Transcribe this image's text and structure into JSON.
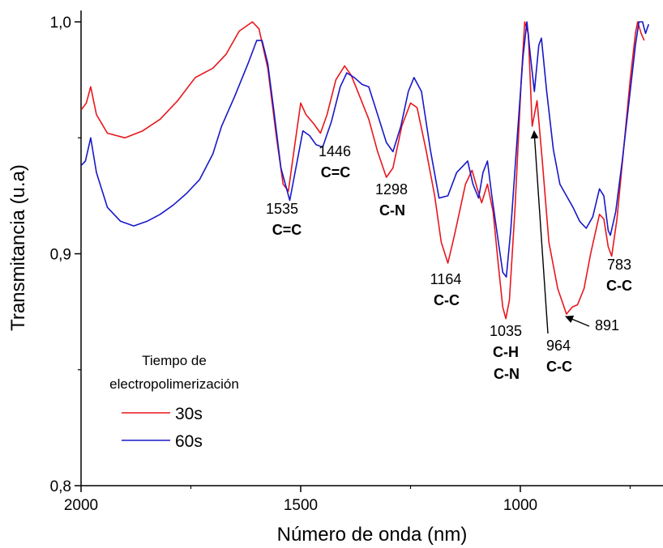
{
  "chart_data": {
    "type": "line",
    "xlabel": "Número de onda (nm)",
    "ylabel": "Transmitancia (u.a)",
    "xlim": [
      2000,
      735
    ],
    "ylim": [
      0.8,
      1.0
    ],
    "x_ticks": [
      2000,
      1500,
      1000
    ],
    "y_ticks": [
      "1,0",
      "0,9",
      "0,8"
    ],
    "y_tick_values": [
      1.0,
      0.9,
      0.8
    ],
    "legend": {
      "title": "Tiempo de electropolimerización",
      "title_lines": [
        "Tiempo de",
        "electropolimerización"
      ],
      "placement": "bottom-left"
    },
    "series": [
      {
        "name": "30s",
        "color": "#e8171c",
        "points": [
          [
            2000,
            0.962
          ],
          [
            1988,
            0.965
          ],
          [
            1978,
            0.972
          ],
          [
            1965,
            0.96
          ],
          [
            1940,
            0.952
          ],
          [
            1900,
            0.95
          ],
          [
            1860,
            0.953
          ],
          [
            1820,
            0.958
          ],
          [
            1780,
            0.966
          ],
          [
            1740,
            0.976
          ],
          [
            1700,
            0.98
          ],
          [
            1670,
            0.986
          ],
          [
            1640,
            0.996
          ],
          [
            1610,
            1.0
          ],
          [
            1595,
            0.997
          ],
          [
            1575,
            0.98
          ],
          [
            1555,
            0.95
          ],
          [
            1540,
            0.93
          ],
          [
            1528,
            0.927
          ],
          [
            1515,
            0.945
          ],
          [
            1500,
            0.965
          ],
          [
            1488,
            0.96
          ],
          [
            1470,
            0.956
          ],
          [
            1455,
            0.952
          ],
          [
            1440,
            0.96
          ],
          [
            1420,
            0.975
          ],
          [
            1400,
            0.981
          ],
          [
            1385,
            0.977
          ],
          [
            1368,
            0.969
          ],
          [
            1345,
            0.958
          ],
          [
            1325,
            0.944
          ],
          [
            1305,
            0.933
          ],
          [
            1290,
            0.937
          ],
          [
            1270,
            0.955
          ],
          [
            1250,
            0.965
          ],
          [
            1235,
            0.963
          ],
          [
            1215,
            0.945
          ],
          [
            1195,
            0.925
          ],
          [
            1180,
            0.905
          ],
          [
            1165,
            0.896
          ],
          [
            1150,
            0.908
          ],
          [
            1125,
            0.93
          ],
          [
            1110,
            0.936
          ],
          [
            1098,
            0.928
          ],
          [
            1088,
            0.922
          ],
          [
            1075,
            0.93
          ],
          [
            1062,
            0.918
          ],
          [
            1050,
            0.895
          ],
          [
            1040,
            0.877
          ],
          [
            1033,
            0.872
          ],
          [
            1025,
            0.88
          ],
          [
            1012,
            0.92
          ],
          [
            998,
            0.975
          ],
          [
            990,
            1.0
          ],
          [
            982,
            0.995
          ],
          [
            973,
            0.955
          ],
          [
            962,
            0.966
          ],
          [
            950,
            0.94
          ],
          [
            935,
            0.905
          ],
          [
            915,
            0.885
          ],
          [
            895,
            0.874
          ],
          [
            882,
            0.877
          ],
          [
            870,
            0.878
          ],
          [
            855,
            0.885
          ],
          [
            840,
            0.9
          ],
          [
            820,
            0.917
          ],
          [
            810,
            0.915
          ],
          [
            800,
            0.903
          ],
          [
            792,
            0.899
          ],
          [
            780,
            0.915
          ],
          [
            765,
            0.945
          ],
          [
            750,
            0.975
          ],
          [
            738,
            0.995
          ],
          [
            733,
            1.0
          ],
          [
            725,
            0.995
          ],
          [
            718,
            0.992
          ]
        ]
      },
      {
        "name": "60s",
        "color": "#1818c8",
        "points": [
          [
            2000,
            0.938
          ],
          [
            1990,
            0.94
          ],
          [
            1978,
            0.95
          ],
          [
            1965,
            0.935
          ],
          [
            1940,
            0.92
          ],
          [
            1910,
            0.914
          ],
          [
            1880,
            0.912
          ],
          [
            1850,
            0.914
          ],
          [
            1820,
            0.917
          ],
          [
            1790,
            0.921
          ],
          [
            1760,
            0.926
          ],
          [
            1730,
            0.932
          ],
          [
            1700,
            0.943
          ],
          [
            1680,
            0.955
          ],
          [
            1650,
            0.968
          ],
          [
            1620,
            0.982
          ],
          [
            1600,
            0.992
          ],
          [
            1588,
            0.992
          ],
          [
            1575,
            0.982
          ],
          [
            1560,
            0.96
          ],
          [
            1545,
            0.937
          ],
          [
            1525,
            0.923
          ],
          [
            1510,
            0.938
          ],
          [
            1495,
            0.953
          ],
          [
            1480,
            0.951
          ],
          [
            1465,
            0.947
          ],
          [
            1450,
            0.946
          ],
          [
            1430,
            0.957
          ],
          [
            1410,
            0.972
          ],
          [
            1395,
            0.978
          ],
          [
            1378,
            0.976
          ],
          [
            1360,
            0.973
          ],
          [
            1345,
            0.972
          ],
          [
            1325,
            0.96
          ],
          [
            1305,
            0.948
          ],
          [
            1290,
            0.944
          ],
          [
            1272,
            0.955
          ],
          [
            1255,
            0.97
          ],
          [
            1242,
            0.976
          ],
          [
            1225,
            0.97
          ],
          [
            1205,
            0.945
          ],
          [
            1185,
            0.924
          ],
          [
            1165,
            0.925
          ],
          [
            1145,
            0.935
          ],
          [
            1120,
            0.94
          ],
          [
            1108,
            0.93
          ],
          [
            1095,
            0.924
          ],
          [
            1085,
            0.935
          ],
          [
            1075,
            0.94
          ],
          [
            1065,
            0.925
          ],
          [
            1050,
            0.905
          ],
          [
            1040,
            0.892
          ],
          [
            1032,
            0.89
          ],
          [
            1022,
            0.91
          ],
          [
            1008,
            0.948
          ],
          [
            994,
            0.985
          ],
          [
            985,
            1.0
          ],
          [
            977,
            0.985
          ],
          [
            968,
            0.97
          ],
          [
            958,
            0.99
          ],
          [
            952,
            0.993
          ],
          [
            940,
            0.97
          ],
          [
            925,
            0.945
          ],
          [
            910,
            0.93
          ],
          [
            895,
            0.925
          ],
          [
            880,
            0.92
          ],
          [
            865,
            0.914
          ],
          [
            850,
            0.911
          ],
          [
            835,
            0.916
          ],
          [
            820,
            0.928
          ],
          [
            810,
            0.925
          ],
          [
            800,
            0.91
          ],
          [
            795,
            0.908
          ],
          [
            783,
            0.918
          ],
          [
            768,
            0.94
          ],
          [
            750,
            0.97
          ],
          [
            738,
            0.99
          ],
          [
            730,
            1.0
          ],
          [
            722,
            1.0
          ],
          [
            715,
            0.995
          ],
          [
            708,
            0.999
          ]
        ]
      }
    ],
    "annotations": [
      {
        "id": "a1535",
        "number": "1535",
        "bond": "C=C"
      },
      {
        "id": "a1446",
        "number": "1446",
        "bond": "C=C"
      },
      {
        "id": "a1298",
        "number": "1298",
        "bond": "C-N"
      },
      {
        "id": "a1164",
        "number": "1164",
        "bond": "C-C"
      },
      {
        "id": "a1035",
        "number": "1035",
        "bond": "C-H",
        "bond2": "C-N"
      },
      {
        "id": "a964",
        "number": "964",
        "bond": "C-C"
      },
      {
        "id": "a891",
        "number": "891"
      },
      {
        "id": "a783",
        "number": "783",
        "bond": "C-C"
      }
    ]
  }
}
